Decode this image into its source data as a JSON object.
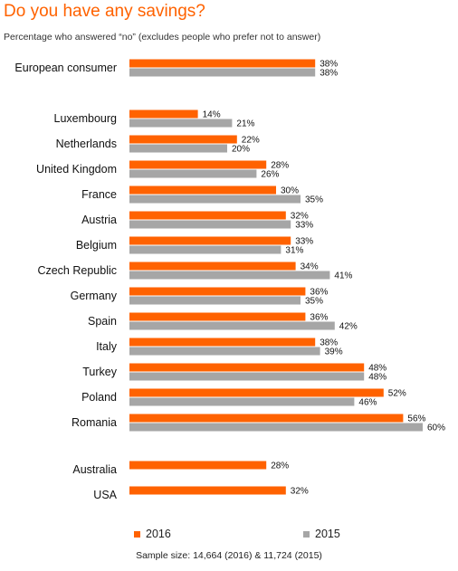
{
  "title": "Do you have any savings?",
  "subtitle": "Percentage who answered “no” (excludes people who prefer not to answer)",
  "footnote": "Sample size: 14,664 (2016) & 11,724 (2015)",
  "colors": {
    "series_2016": "#ff6200",
    "series_2015": "#a6a6a6"
  },
  "chart_data": {
    "type": "bar",
    "orientation": "horizontal",
    "categories": [
      "European consumer",
      "Luxembourg",
      "Netherlands",
      "United Kingdom",
      "France",
      "Austria",
      "Belgium",
      "Czech Republic",
      "Germany",
      "Spain",
      "Italy",
      "Turkey",
      "Poland",
      "Romania",
      "Australia",
      "USA"
    ],
    "series": [
      {
        "name": "2016",
        "values": [
          38,
          14,
          22,
          28,
          30,
          32,
          33,
          34,
          36,
          36,
          38,
          48,
          52,
          56,
          28,
          32
        ]
      },
      {
        "name": "2015",
        "values": [
          38,
          21,
          20,
          26,
          35,
          33,
          31,
          41,
          35,
          42,
          39,
          48,
          46,
          60,
          null,
          null
        ]
      }
    ],
    "value_suffix": "%",
    "legend": [
      "2016",
      "2015"
    ],
    "legend_position": "bottom",
    "xlim": [
      0,
      60
    ],
    "grid": false
  }
}
